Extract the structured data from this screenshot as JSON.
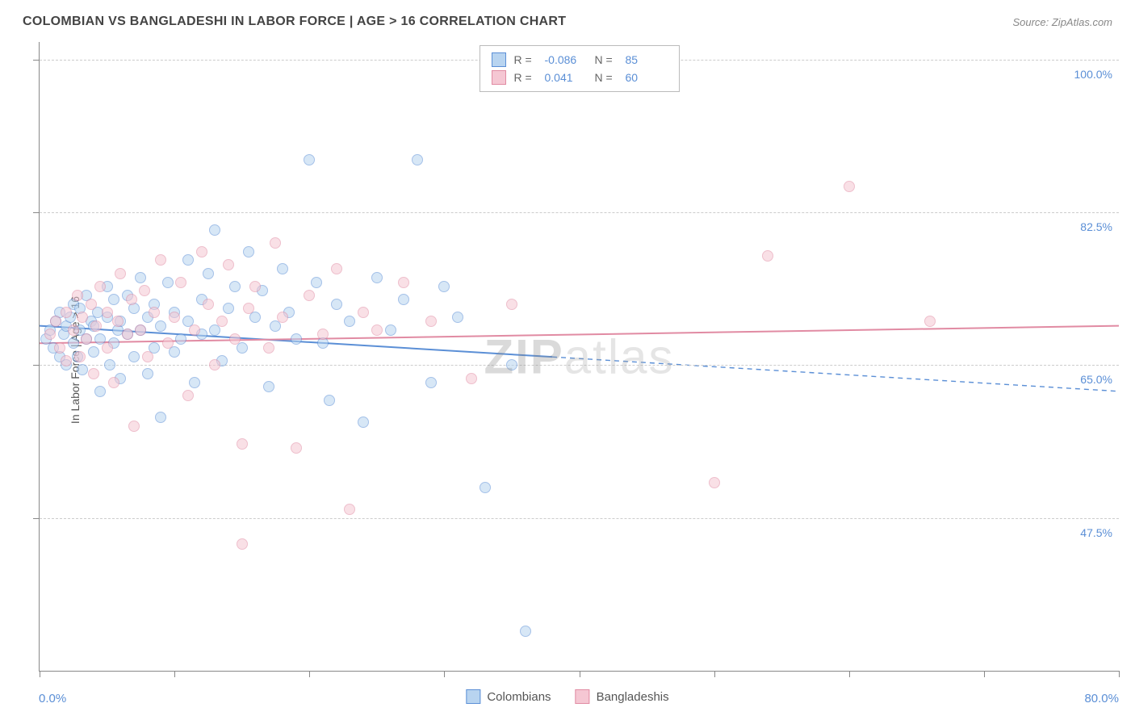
{
  "title": "COLOMBIAN VS BANGLADESHI IN LABOR FORCE | AGE > 16 CORRELATION CHART",
  "source": "Source: ZipAtlas.com",
  "y_axis_title": "In Labor Force | Age > 16",
  "watermark": {
    "bold": "ZIP",
    "light": "atlas"
  },
  "chart": {
    "type": "scatter",
    "xlim": [
      0,
      80
    ],
    "ylim": [
      30,
      102
    ],
    "x_ticks": [
      0,
      10,
      20,
      30,
      40,
      50,
      60,
      70,
      80
    ],
    "y_gridlines": [
      47.5,
      65.0,
      82.5,
      100.0
    ],
    "y_labels": [
      "47.5%",
      "65.0%",
      "82.5%",
      "100.0%"
    ],
    "x_label_start": "0.0%",
    "x_label_end": "80.0%",
    "background_color": "#ffffff",
    "grid_color": "#cccccc",
    "axis_color": "#888888",
    "value_text_color": "#5b8fd6",
    "marker_radius": 7,
    "marker_stroke_width": 1.2
  },
  "series": [
    {
      "name": "Colombians",
      "fill": "#b8d4f0",
      "stroke": "#5b8fd6",
      "fill_opacity": 0.55,
      "R": "-0.086",
      "N": "85",
      "trend": {
        "y_at_x0": 69.5,
        "y_at_xmax": 62.0,
        "solid_until_x": 38,
        "width": 2
      },
      "points": [
        [
          0.5,
          68
        ],
        [
          0.8,
          69
        ],
        [
          1.0,
          67
        ],
        [
          1.2,
          70
        ],
        [
          1.5,
          66
        ],
        [
          1.5,
          71
        ],
        [
          1.8,
          68.5
        ],
        [
          2.0,
          69.5
        ],
        [
          2.0,
          65
        ],
        [
          2.3,
          70.5
        ],
        [
          2.5,
          67.5
        ],
        [
          2.5,
          72
        ],
        [
          2.8,
          66
        ],
        [
          3.0,
          69
        ],
        [
          3.0,
          71.5
        ],
        [
          3.2,
          64.5
        ],
        [
          3.5,
          68
        ],
        [
          3.5,
          73
        ],
        [
          3.8,
          70
        ],
        [
          4.0,
          66.5
        ],
        [
          4.0,
          69.5
        ],
        [
          4.3,
          71
        ],
        [
          4.5,
          62
        ],
        [
          4.5,
          68
        ],
        [
          5.0,
          70.5
        ],
        [
          5.0,
          74
        ],
        [
          5.2,
          65
        ],
        [
          5.5,
          67.5
        ],
        [
          5.5,
          72.5
        ],
        [
          5.8,
          69
        ],
        [
          6.0,
          63.5
        ],
        [
          6.0,
          70
        ],
        [
          6.5,
          68.5
        ],
        [
          6.5,
          73
        ],
        [
          7.0,
          66
        ],
        [
          7.0,
          71.5
        ],
        [
          7.5,
          75
        ],
        [
          7.5,
          69
        ],
        [
          8.0,
          64
        ],
        [
          8.0,
          70.5
        ],
        [
          8.5,
          67
        ],
        [
          8.5,
          72
        ],
        [
          9.0,
          59
        ],
        [
          9.0,
          69.5
        ],
        [
          9.5,
          74.5
        ],
        [
          10.0,
          66.5
        ],
        [
          10.0,
          71
        ],
        [
          10.5,
          68
        ],
        [
          11.0,
          77
        ],
        [
          11.0,
          70
        ],
        [
          11.5,
          63
        ],
        [
          12.0,
          72.5
        ],
        [
          12.0,
          68.5
        ],
        [
          12.5,
          75.5
        ],
        [
          13.0,
          80.5
        ],
        [
          13.0,
          69
        ],
        [
          13.5,
          65.5
        ],
        [
          14.0,
          71.5
        ],
        [
          14.5,
          74
        ],
        [
          15.0,
          67
        ],
        [
          15.5,
          78
        ],
        [
          16.0,
          70.5
        ],
        [
          16.5,
          73.5
        ],
        [
          17.0,
          62.5
        ],
        [
          17.5,
          69.5
        ],
        [
          18.0,
          76
        ],
        [
          18.5,
          71
        ],
        [
          19.0,
          68
        ],
        [
          20.0,
          88.5
        ],
        [
          20.5,
          74.5
        ],
        [
          21.0,
          67.5
        ],
        [
          21.5,
          61
        ],
        [
          22.0,
          72
        ],
        [
          23.0,
          70
        ],
        [
          24.0,
          58.5
        ],
        [
          25.0,
          75
        ],
        [
          26.0,
          69
        ],
        [
          27.0,
          72.5
        ],
        [
          28.0,
          88.5
        ],
        [
          29.0,
          63
        ],
        [
          30.0,
          74
        ],
        [
          31.0,
          70.5
        ],
        [
          33.0,
          51
        ],
        [
          35.0,
          65
        ],
        [
          36.0,
          34.5
        ]
      ]
    },
    {
      "name": "Bangladeshis",
      "fill": "#f5c7d3",
      "stroke": "#e18ba3",
      "fill_opacity": 0.55,
      "R": "0.041",
      "N": "60",
      "trend": {
        "y_at_x0": 67.5,
        "y_at_xmax": 69.5,
        "solid_until_x": 80,
        "width": 2
      },
      "points": [
        [
          0.8,
          68.5
        ],
        [
          1.2,
          70
        ],
        [
          1.5,
          67
        ],
        [
          2.0,
          71
        ],
        [
          2.0,
          65.5
        ],
        [
          2.5,
          69
        ],
        [
          2.8,
          73
        ],
        [
          3.0,
          66
        ],
        [
          3.2,
          70.5
        ],
        [
          3.5,
          68
        ],
        [
          3.8,
          72
        ],
        [
          4.0,
          64
        ],
        [
          4.2,
          69.5
        ],
        [
          4.5,
          74
        ],
        [
          5.0,
          67
        ],
        [
          5.0,
          71
        ],
        [
          5.5,
          63
        ],
        [
          5.8,
          70
        ],
        [
          6.0,
          75.5
        ],
        [
          6.5,
          68.5
        ],
        [
          6.8,
          72.5
        ],
        [
          7.0,
          58
        ],
        [
          7.5,
          69
        ],
        [
          7.8,
          73.5
        ],
        [
          8.0,
          66
        ],
        [
          8.5,
          71
        ],
        [
          9.0,
          77
        ],
        [
          9.5,
          67.5
        ],
        [
          10.0,
          70.5
        ],
        [
          10.5,
          74.5
        ],
        [
          11.0,
          61.5
        ],
        [
          11.5,
          69
        ],
        [
          12.0,
          78
        ],
        [
          12.5,
          72
        ],
        [
          13.0,
          65
        ],
        [
          13.5,
          70
        ],
        [
          14.0,
          76.5
        ],
        [
          14.5,
          68
        ],
        [
          15.0,
          56
        ],
        [
          15.0,
          44.5
        ],
        [
          15.5,
          71.5
        ],
        [
          16.0,
          74
        ],
        [
          17.0,
          67
        ],
        [
          17.5,
          79
        ],
        [
          18.0,
          70.5
        ],
        [
          19.0,
          55.5
        ],
        [
          20.0,
          73
        ],
        [
          21.0,
          68.5
        ],
        [
          22.0,
          76
        ],
        [
          23.0,
          48.5
        ],
        [
          24.0,
          71
        ],
        [
          25.0,
          69
        ],
        [
          27.0,
          74.5
        ],
        [
          29.0,
          70
        ],
        [
          32.0,
          63.5
        ],
        [
          35.0,
          72
        ],
        [
          50.0,
          51.5
        ],
        [
          54.0,
          77.5
        ],
        [
          60.0,
          85.5
        ],
        [
          66.0,
          70
        ]
      ]
    }
  ],
  "legend_top": {
    "r_label": "R =",
    "n_label": "N ="
  },
  "legend_bottom": [
    "Colombians",
    "Bangladeshis"
  ]
}
